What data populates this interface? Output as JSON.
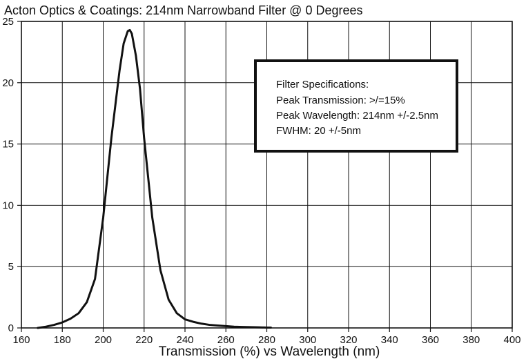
{
  "chart_data": {
    "type": "line",
    "title": "Acton Optics & Coatings: 214nm Narrowband Filter @ 0 Degrees",
    "xlabel": "Transmission (%) vs Wavelength (nm)",
    "ylabel": "",
    "xlim": [
      160,
      400
    ],
    "ylim": [
      0,
      25
    ],
    "x_ticks": [
      160,
      180,
      200,
      220,
      240,
      260,
      280,
      300,
      320,
      340,
      360,
      380,
      400
    ],
    "y_ticks": [
      0,
      5,
      10,
      15,
      20,
      25
    ],
    "grid": true,
    "legend": "none",
    "series": [
      {
        "color": "#111111",
        "x": [
          168,
          172,
          176,
          180,
          184,
          188,
          192,
          196,
          200,
          204,
          208,
          210,
          212,
          213,
          214,
          216,
          218,
          220,
          224,
          228,
          232,
          236,
          240,
          244,
          248,
          252,
          256,
          260,
          264,
          268,
          272,
          276,
          280,
          282
        ],
        "y": [
          0.0,
          0.1,
          0.25,
          0.45,
          0.75,
          1.2,
          2.1,
          4.0,
          9.0,
          15.5,
          21.0,
          23.2,
          24.2,
          24.3,
          24.0,
          22.2,
          19.5,
          15.5,
          9.0,
          4.7,
          2.3,
          1.2,
          0.7,
          0.5,
          0.35,
          0.25,
          0.2,
          0.15,
          0.1,
          0.08,
          0.06,
          0.05,
          0.03,
          0.03
        ]
      }
    ],
    "annotation": {
      "lines": [
        "Filter Specifications:",
        "Peak Transmission: >/=15%",
        "Peak Wavelength: 214nm +/-2.5nm",
        "FWHM: 20 +/-5nm"
      ]
    }
  },
  "style": {
    "background": "#ffffff",
    "grid_color": "#111111",
    "axis_color": "#111111",
    "text_color": "#111111"
  }
}
